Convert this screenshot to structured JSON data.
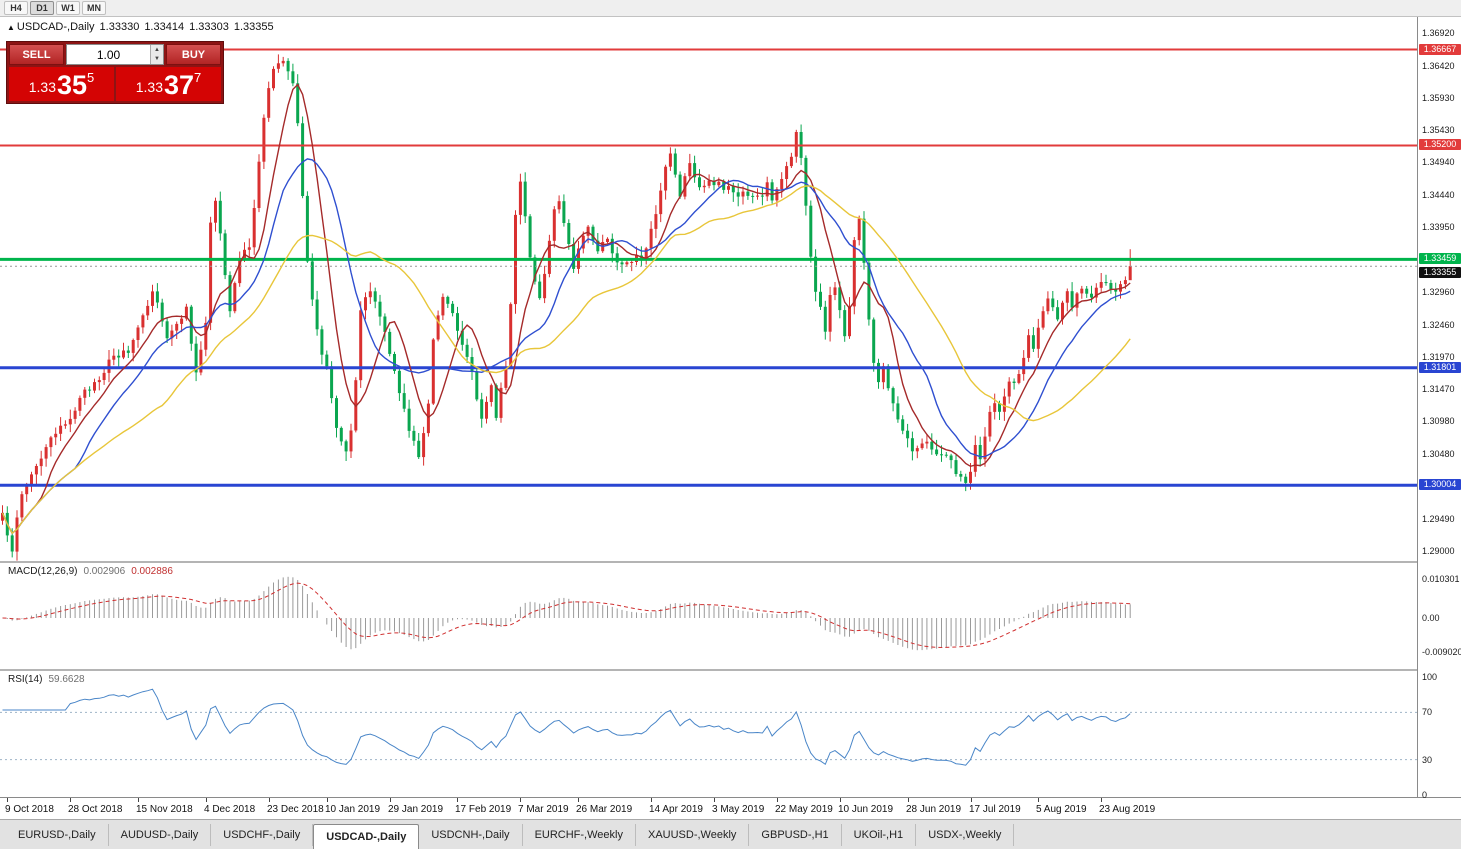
{
  "toolbar": {
    "timeframes": [
      {
        "label": "H4",
        "active": false
      },
      {
        "label": "D1",
        "active": true
      },
      {
        "label": "W1",
        "active": false
      },
      {
        "label": "MN",
        "active": false
      }
    ]
  },
  "chart_header": {
    "direction_icon": "▲",
    "symbol": "USDCAD-,Daily",
    "open": "1.33330",
    "high": "1.33414",
    "low": "1.33303",
    "close": "1.33355"
  },
  "trade_panel": {
    "sell_label": "SELL",
    "buy_label": "BUY",
    "volume": "1.00",
    "sell_price": {
      "prefix": "1.33",
      "big": "35",
      "sup": "5"
    },
    "buy_price": {
      "prefix": "1.33",
      "big": "37",
      "sup": "7"
    }
  },
  "price_axis": {
    "ticks": [
      "1.36920",
      "1.36420",
      "1.35930",
      "1.35430",
      "1.34940",
      "1.34440",
      "1.33950",
      "1.32960",
      "1.32460",
      "1.31970",
      "1.31470",
      "1.30980",
      "1.30480",
      "1.29490",
      "1.29000"
    ]
  },
  "hlines": [
    {
      "price": 1.36667,
      "label": "1.36667",
      "color": "#e23b3b",
      "width": 2
    },
    {
      "price": 1.352,
      "label": "1.35200",
      "color": "#e23b3b",
      "width": 2
    },
    {
      "price": 1.33459,
      "label": "1.33459",
      "color": "#00b44c",
      "width": 3
    },
    {
      "price": 1.31801,
      "label": "1.31801",
      "color": "#2945d2",
      "width": 3
    },
    {
      "price": 1.30004,
      "label": "1.30004",
      "color": "#2945d2",
      "width": 3
    }
  ],
  "current_price": {
    "value": 1.33355,
    "label": "1.33355",
    "bg": "#101010"
  },
  "macd_panel": {
    "title": "MACD(12,26,9)",
    "value_main": "0.002906",
    "value_signal": "0.002886",
    "axis": [
      {
        "label": "0.010301",
        "value": 0.010301
      },
      {
        "label": "0.00",
        "value": 0
      },
      {
        "label": "-0.009020",
        "value": -0.00902
      }
    ]
  },
  "rsi_panel": {
    "title": "RSI(14)",
    "value": "59.6628",
    "axis": [
      {
        "label": "100",
        "value": 100
      },
      {
        "label": "70",
        "value": 70
      },
      {
        "label": "30",
        "value": 30
      },
      {
        "label": "0",
        "value": 0
      }
    ],
    "levels": [
      70,
      30
    ]
  },
  "date_axis": {
    "ticks": [
      {
        "label": "9 Oct 2018",
        "bar": 1
      },
      {
        "label": "28 Oct 2018",
        "bar": 14
      },
      {
        "label": "15 Nov 2018",
        "bar": 28
      },
      {
        "label": "4 Dec 2018",
        "bar": 42
      },
      {
        "label": "23 Dec 2018",
        "bar": 55
      },
      {
        "label": "10 Jan 2019",
        "bar": 67
      },
      {
        "label": "29 Jan 2019",
        "bar": 80
      },
      {
        "label": "17 Feb 2019",
        "bar": 94
      },
      {
        "label": "7 Mar 2019",
        "bar": 107
      },
      {
        "label": "26 Mar 2019",
        "bar": 119
      },
      {
        "label": "14 Apr 2019",
        "bar": 134
      },
      {
        "label": "3 May 2019",
        "bar": 147
      },
      {
        "label": "22 May 2019",
        "bar": 160
      },
      {
        "label": "10 Jun 2019",
        "bar": 173
      },
      {
        "label": "28 Jun 2019",
        "bar": 187
      },
      {
        "label": "17 Jul 2019",
        "bar": 200
      },
      {
        "label": "5 Aug 2019",
        "bar": 214
      },
      {
        "label": "23 Aug 2019",
        "bar": 227
      }
    ]
  },
  "tabs": [
    {
      "label": "EURUSD-,Daily",
      "active": false
    },
    {
      "label": "AUDUSD-,Daily",
      "active": false
    },
    {
      "label": "USDCHF-,Daily",
      "active": false
    },
    {
      "label": "USDCAD-,Daily",
      "active": true
    },
    {
      "label": "USDCNH-,Daily",
      "active": false
    },
    {
      "label": "EURCHF-,Weekly",
      "active": false
    },
    {
      "label": "XAUUSD-,Weekly",
      "active": false
    },
    {
      "label": "GBPUSD-,H1",
      "active": false
    },
    {
      "label": "UKOil-,H1",
      "active": false
    },
    {
      "label": "USDX-,Weekly",
      "active": false
    }
  ],
  "chart_data": {
    "type": "candlestick",
    "symbol": "USDCAD",
    "timeframe": "Daily",
    "bars": 234,
    "bar_spacing_px": 4.84,
    "y_range": [
      1.29,
      1.3692
    ],
    "last_open": 1.3333,
    "last_high": 1.33414,
    "last_low": 1.33303,
    "last_close": 1.33355,
    "up_color": "#d93030",
    "down_color": "#0aa64f",
    "support_resistance": [
      1.36667,
      1.352,
      1.33459,
      1.31801,
      1.30004
    ],
    "moving_averages": [
      {
        "period": 8,
        "color": "#a52a2a"
      },
      {
        "period": 16,
        "color": "#2f4fd0"
      },
      {
        "period": 34,
        "color": "#e8c63a"
      }
    ],
    "indicators": {
      "macd": {
        "fast": 12,
        "slow": 26,
        "signal": 9,
        "current_main": 0.002906,
        "current_signal": 0.002886,
        "histogram_color": "#9a9a9a",
        "signal_color": "#d03030",
        "axis_max": 0.010301,
        "axis_min": -0.00902
      },
      "rsi": {
        "period": 14,
        "current": 59.6628,
        "color": "#4a86c8",
        "levels": [
          70,
          30
        ]
      }
    },
    "price_anchors": [
      [
        0,
        1.2952
      ],
      [
        2,
        1.2906
      ],
      [
        4,
        1.2985
      ],
      [
        6,
        1.3018
      ],
      [
        9,
        1.3058
      ],
      [
        12,
        1.3085
      ],
      [
        14,
        1.3108
      ],
      [
        17,
        1.314
      ],
      [
        20,
        1.3168
      ],
      [
        23,
        1.3195
      ],
      [
        26,
        1.3205
      ],
      [
        29,
        1.3262
      ],
      [
        31,
        1.33
      ],
      [
        33,
        1.3258
      ],
      [
        34,
        1.3225
      ],
      [
        36,
        1.3252
      ],
      [
        38,
        1.3268
      ],
      [
        40,
        1.3178
      ],
      [
        42,
        1.3245
      ],
      [
        43,
        1.3398
      ],
      [
        44,
        1.3432
      ],
      [
        45,
        1.3388
      ],
      [
        46,
        1.332
      ],
      [
        47,
        1.3268
      ],
      [
        49,
        1.3345
      ],
      [
        51,
        1.3368
      ],
      [
        52,
        1.343
      ],
      [
        53,
        1.3498
      ],
      [
        54,
        1.3558
      ],
      [
        55,
        1.3608
      ],
      [
        56,
        1.3635
      ],
      [
        58,
        1.3652
      ],
      [
        60,
        1.3618
      ],
      [
        61,
        1.3558
      ],
      [
        62,
        1.3448
      ],
      [
        63,
        1.3348
      ],
      [
        64,
        1.3288
      ],
      [
        65,
        1.3235
      ],
      [
        67,
        1.3178
      ],
      [
        69,
        1.309
      ],
      [
        71,
        1.3058
      ],
      [
        72,
        1.3088
      ],
      [
        73,
        1.3158
      ],
      [
        74,
        1.3268
      ],
      [
        76,
        1.3298
      ],
      [
        78,
        1.3262
      ],
      [
        80,
        1.3198
      ],
      [
        82,
        1.3148
      ],
      [
        84,
        1.3082
      ],
      [
        86,
        1.3045
      ],
      [
        88,
        1.3128
      ],
      [
        89,
        1.3228
      ],
      [
        91,
        1.3292
      ],
      [
        93,
        1.3268
      ],
      [
        95,
        1.3218
      ],
      [
        97,
        1.3178
      ],
      [
        99,
        1.3098
      ],
      [
        101,
        1.3148
      ],
      [
        102,
        1.3108
      ],
      [
        104,
        1.3188
      ],
      [
        105,
        1.3278
      ],
      [
        106,
        1.3418
      ],
      [
        107,
        1.3458
      ],
      [
        108,
        1.3415
      ],
      [
        109,
        1.3348
      ],
      [
        111,
        1.3288
      ],
      [
        112,
        1.3328
      ],
      [
        114,
        1.3418
      ],
      [
        115,
        1.3428
      ],
      [
        117,
        1.3368
      ],
      [
        118,
        1.3338
      ],
      [
        120,
        1.3382
      ],
      [
        121,
        1.3398
      ],
      [
        123,
        1.3362
      ],
      [
        125,
        1.3378
      ],
      [
        127,
        1.3338
      ],
      [
        129,
        1.3345
      ],
      [
        131,
        1.3352
      ],
      [
        133,
        1.3358
      ],
      [
        135,
        1.3418
      ],
      [
        137,
        1.3488
      ],
      [
        138,
        1.3508
      ],
      [
        139,
        1.3478
      ],
      [
        140,
        1.3448
      ],
      [
        142,
        1.3498
      ],
      [
        144,
        1.3458
      ],
      [
        146,
        1.3468
      ],
      [
        148,
        1.3458
      ],
      [
        150,
        1.3452
      ],
      [
        152,
        1.3448
      ],
      [
        154,
        1.3442
      ],
      [
        156,
        1.3438
      ],
      [
        158,
        1.3458
      ],
      [
        159,
        1.3438
      ],
      [
        161,
        1.3468
      ],
      [
        163,
        1.3508
      ],
      [
        164,
        1.3538
      ],
      [
        165,
        1.3498
      ],
      [
        166,
        1.3428
      ],
      [
        167,
        1.3348
      ],
      [
        168,
        1.3298
      ],
      [
        170,
        1.3238
      ],
      [
        171,
        1.3288
      ],
      [
        172,
        1.3308
      ],
      [
        174,
        1.3228
      ],
      [
        175,
        1.3278
      ],
      [
        176,
        1.3378
      ],
      [
        177,
        1.3408
      ],
      [
        178,
        1.3338
      ],
      [
        179,
        1.3258
      ],
      [
        180,
        1.3188
      ],
      [
        181,
        1.3158
      ],
      [
        182,
        1.3178
      ],
      [
        184,
        1.3128
      ],
      [
        186,
        1.3088
      ],
      [
        188,
        1.3058
      ],
      [
        190,
        1.3068
      ],
      [
        192,
        1.3058
      ],
      [
        194,
        1.3048
      ],
      [
        196,
        1.3038
      ],
      [
        198,
        1.3008
      ],
      [
        199,
        1.3002
      ],
      [
        200,
        1.3028
      ],
      [
        201,
        1.3058
      ],
      [
        202,
        1.3038
      ],
      [
        204,
        1.3108
      ],
      [
        205,
        1.3128
      ],
      [
        206,
        1.3108
      ],
      [
        208,
        1.3158
      ],
      [
        210,
        1.3168
      ],
      [
        212,
        1.3228
      ],
      [
        213,
        1.3208
      ],
      [
        215,
        1.3268
      ],
      [
        216,
        1.3288
      ],
      [
        218,
        1.3248
      ],
      [
        220,
        1.3298
      ],
      [
        221,
        1.3278
      ],
      [
        223,
        1.3308
      ],
      [
        225,
        1.3288
      ],
      [
        227,
        1.3308
      ],
      [
        229,
        1.3298
      ],
      [
        231,
        1.3302
      ],
      [
        232,
        1.3318
      ],
      [
        233,
        1.33355
      ]
    ]
  }
}
